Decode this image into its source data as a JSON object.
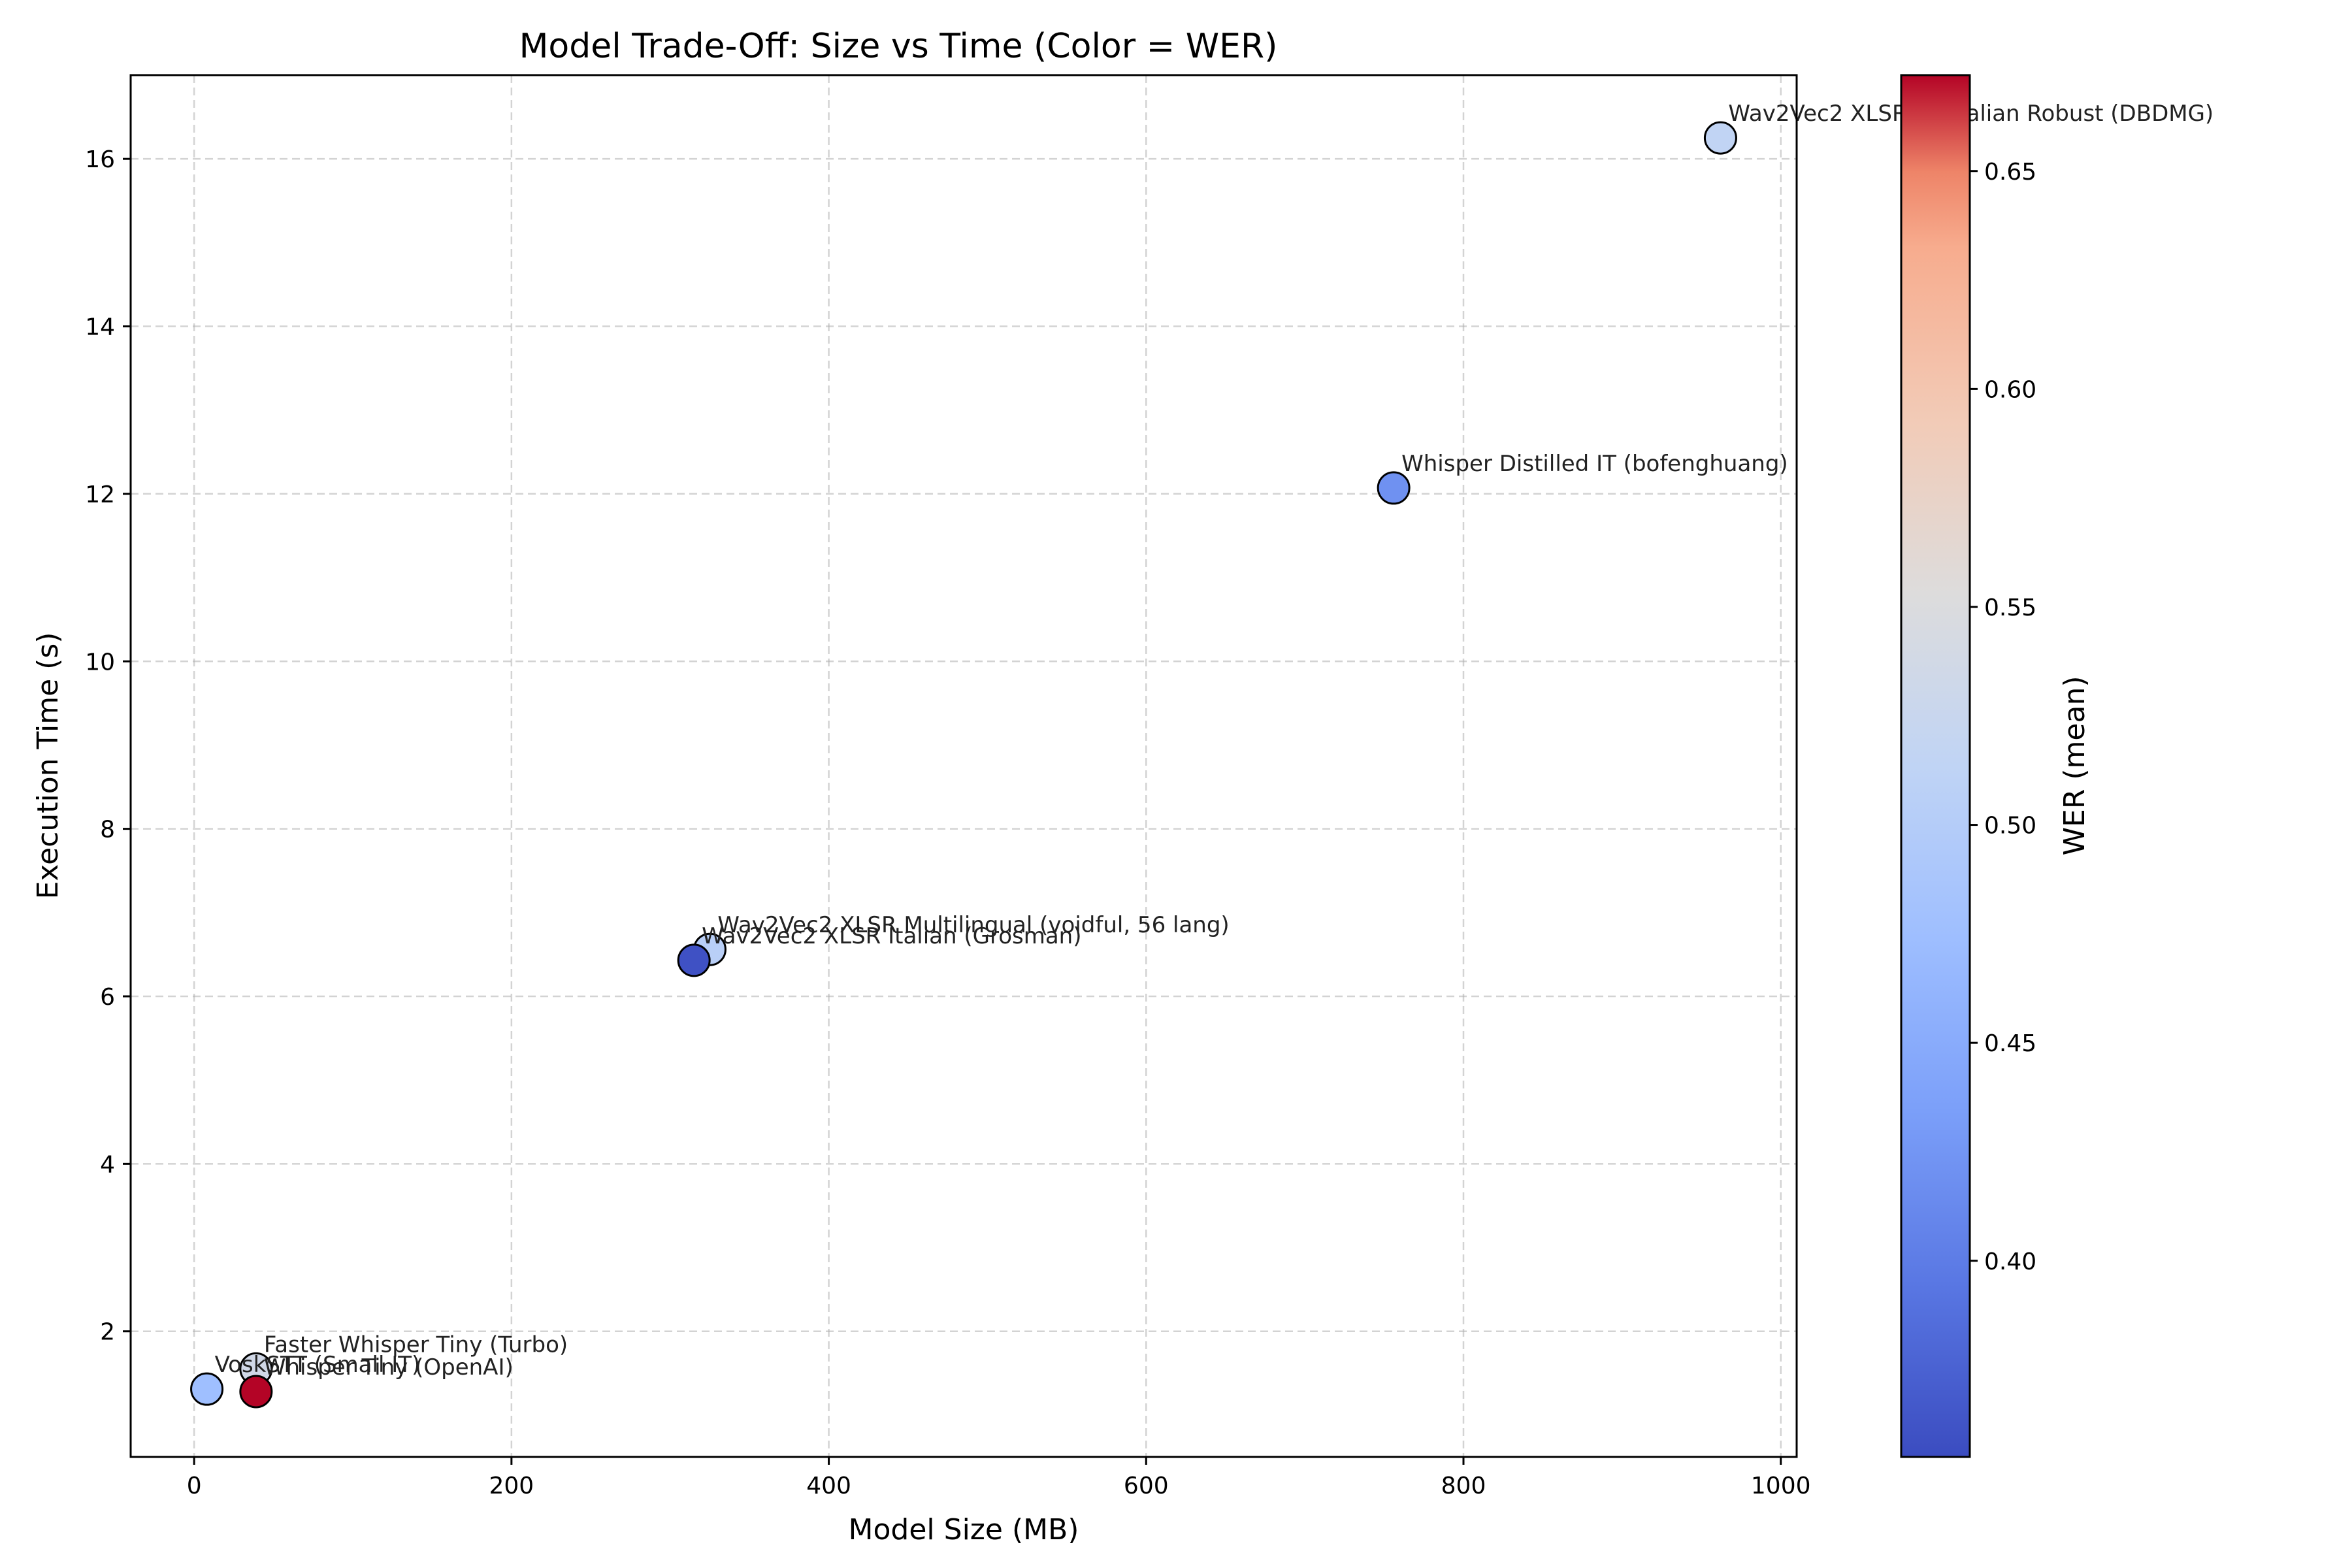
{
  "chart_data": {
    "type": "scatter",
    "title": "Model Trade-Off: Size vs Time (Color = WER)",
    "xlabel": "Model Size (MB)",
    "ylabel": "Execution Time (s)",
    "xlim": [
      -40,
      1010
    ],
    "ylim": [
      0.5,
      17
    ],
    "xticks": [
      0,
      200,
      400,
      600,
      800,
      1000
    ],
    "yticks": [
      2,
      4,
      6,
      8,
      10,
      12,
      14,
      16
    ],
    "grid": true,
    "colorbar": {
      "label": "WER (mean)",
      "colormap": "coolwarm",
      "range": [
        0.355,
        0.672
      ],
      "ticks": [
        0.4,
        0.45,
        0.5,
        0.55,
        0.6,
        0.65
      ],
      "tick_labels": [
        "0.40",
        "0.45",
        "0.50",
        "0.55",
        "0.60",
        "0.65"
      ]
    },
    "points": [
      {
        "label": "Wav2Vec2 XLSR 1B Italian Robust (DBDMG)",
        "x": 962,
        "y": 16.25,
        "wer": 0.515
      },
      {
        "label": "Whisper Distilled IT (bofenghuang)",
        "x": 756,
        "y": 12.07,
        "wer": 0.42
      },
      {
        "label": "Wav2Vec2 XLSR Multilingual (voidful, 56 lang)",
        "x": 325,
        "y": 6.56,
        "wer": 0.505
      },
      {
        "label": "Wav2Vec2 XLSR Italian (Grosman)",
        "x": 315,
        "y": 6.43,
        "wer": 0.36
      },
      {
        "label": "Faster Whisper Tiny (Turbo)",
        "x": 39,
        "y": 1.55,
        "wer": 0.535
      },
      {
        "label": "VoskSTT (Small IT)",
        "x": 8,
        "y": 1.31,
        "wer": 0.475
      },
      {
        "label": "Whisper Tiny (OpenAI)",
        "x": 39,
        "y": 1.28,
        "wer": 0.672
      }
    ]
  }
}
